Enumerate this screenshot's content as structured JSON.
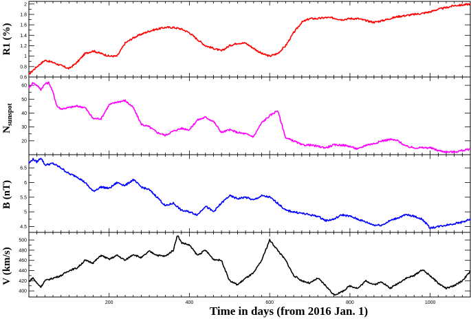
{
  "xlabel": "Time in days (from 2016 Jan. 1)",
  "x_tick_labels": [
    "200",
    "400",
    "600",
    "800",
    "1000"
  ],
  "chart_data": [
    {
      "type": "line",
      "ylabel": "R1 (%)",
      "color": "#ff0000",
      "xlim": [
        0,
        1100
      ],
      "ylim": [
        0.6,
        2.05
      ],
      "y_ticks": [
        0.6,
        0.8,
        1,
        1.2,
        1.4,
        1.6,
        1.8,
        2
      ],
      "y_tick_labels": [
        "0.6",
        "0.8",
        "1",
        "1.2",
        "1.4",
        "1.6",
        "1.8",
        "2"
      ],
      "x": [
        0,
        20,
        40,
        60,
        80,
        100,
        120,
        140,
        160,
        180,
        200,
        220,
        240,
        260,
        280,
        300,
        320,
        340,
        360,
        380,
        400,
        420,
        440,
        460,
        480,
        500,
        520,
        540,
        560,
        580,
        600,
        620,
        640,
        660,
        680,
        700,
        720,
        740,
        760,
        780,
        800,
        820,
        840,
        860,
        880,
        900,
        920,
        940,
        960,
        980,
        1000,
        1020,
        1040,
        1060,
        1080,
        1100
      ],
      "y": [
        0.65,
        0.8,
        0.92,
        0.88,
        0.82,
        0.76,
        0.88,
        1.05,
        1.1,
        1.05,
        1.0,
        1.0,
        1.25,
        1.35,
        1.42,
        1.48,
        1.52,
        1.55,
        1.55,
        1.52,
        1.45,
        1.32,
        1.2,
        1.15,
        1.1,
        1.2,
        1.25,
        1.25,
        1.15,
        1.05,
        1.0,
        1.05,
        1.2,
        1.45,
        1.65,
        1.72,
        1.72,
        1.74,
        1.73,
        1.7,
        1.72,
        1.72,
        1.68,
        1.65,
        1.68,
        1.72,
        1.76,
        1.78,
        1.8,
        1.82,
        1.85,
        1.9,
        1.93,
        1.97,
        1.98,
        2.0
      ]
    },
    {
      "type": "line",
      "ylabel": "N",
      "ylabel_subscript": "sunspot",
      "color": "#ff00ff",
      "xlim": [
        0,
        1100
      ],
      "ylim": [
        10,
        66
      ],
      "y_ticks": [
        20,
        30,
        40,
        50,
        60
      ],
      "y_tick_labels": [
        "20",
        "30",
        "40",
        "50",
        "60"
      ],
      "x": [
        0,
        10,
        20,
        30,
        40,
        50,
        60,
        70,
        80,
        100,
        120,
        140,
        160,
        180,
        200,
        220,
        240,
        260,
        280,
        300,
        320,
        340,
        360,
        380,
        400,
        420,
        440,
        460,
        480,
        500,
        520,
        540,
        560,
        580,
        600,
        620,
        640,
        660,
        680,
        700,
        720,
        740,
        760,
        780,
        800,
        820,
        840,
        860,
        880,
        900,
        920,
        940,
        960,
        980,
        1000,
        1020,
        1040,
        1060,
        1080,
        1100
      ],
      "y": [
        58,
        62,
        60,
        57,
        61,
        62,
        55,
        45,
        43,
        44,
        45,
        44,
        36,
        36,
        46,
        48,
        49,
        44,
        32,
        30,
        26,
        24,
        27,
        29,
        28,
        35,
        37,
        34,
        26,
        28,
        26,
        25,
        23,
        33,
        38,
        42,
        22,
        20,
        17,
        17,
        16,
        15,
        17,
        17,
        16,
        14,
        17,
        18,
        20,
        21,
        20,
        16,
        15,
        15,
        15,
        13,
        12,
        12,
        13,
        14
      ]
    },
    {
      "type": "line",
      "ylabel": "B (nT)",
      "color": "#0000ff",
      "xlim": [
        0,
        1100
      ],
      "ylim": [
        4.3,
        6.95
      ],
      "y_ticks": [
        4.5,
        5,
        5.5,
        6,
        6.5
      ],
      "y_tick_labels": [
        "4.5",
        "5",
        "5.5",
        "6",
        "6.5"
      ],
      "x": [
        0,
        10,
        20,
        30,
        40,
        60,
        80,
        100,
        120,
        140,
        160,
        180,
        200,
        220,
        240,
        260,
        280,
        300,
        320,
        340,
        360,
        380,
        400,
        420,
        440,
        460,
        480,
        500,
        520,
        540,
        560,
        580,
        600,
        620,
        640,
        660,
        680,
        700,
        720,
        740,
        760,
        780,
        800,
        820,
        840,
        860,
        880,
        900,
        920,
        940,
        960,
        980,
        1000,
        1020,
        1040,
        1060,
        1080,
        1100
      ],
      "y": [
        6.65,
        6.8,
        6.7,
        6.85,
        6.6,
        6.65,
        6.5,
        6.3,
        6.2,
        6.0,
        5.7,
        5.85,
        5.8,
        6.0,
        5.9,
        6.1,
        5.85,
        5.75,
        5.5,
        5.2,
        5.3,
        5.05,
        5.0,
        4.9,
        5.2,
        5.0,
        5.3,
        5.55,
        5.45,
        5.5,
        5.4,
        5.55,
        5.5,
        5.3,
        5.05,
        5.0,
        4.95,
        4.9,
        4.85,
        4.7,
        4.75,
        4.9,
        4.85,
        4.75,
        4.65,
        4.55,
        4.55,
        4.7,
        4.8,
        4.9,
        4.85,
        4.75,
        4.45,
        4.5,
        4.55,
        4.6,
        4.65,
        4.75
      ]
    },
    {
      "type": "line",
      "ylabel": "V (km/s)",
      "color": "#000000",
      "xlim": [
        0,
        1100
      ],
      "ylim": [
        388,
        515
      ],
      "y_ticks": [
        400,
        420,
        440,
        460,
        480,
        500
      ],
      "y_tick_labels": [
        "400",
        "420",
        "440",
        "460",
        "480",
        "500"
      ],
      "x": [
        0,
        10,
        20,
        30,
        40,
        60,
        80,
        100,
        120,
        140,
        160,
        180,
        200,
        220,
        240,
        260,
        280,
        300,
        320,
        340,
        360,
        370,
        380,
        400,
        420,
        440,
        460,
        480,
        500,
        520,
        540,
        560,
        580,
        600,
        620,
        640,
        660,
        680,
        700,
        720,
        740,
        760,
        780,
        800,
        820,
        840,
        860,
        880,
        900,
        920,
        940,
        960,
        980,
        1000,
        1020,
        1040,
        1060,
        1080,
        1100
      ],
      "y": [
        418,
        426,
        415,
        408,
        420,
        425,
        430,
        440,
        445,
        460,
        455,
        470,
        462,
        470,
        460,
        472,
        465,
        478,
        470,
        468,
        480,
        510,
        495,
        490,
        470,
        480,
        462,
        460,
        420,
        412,
        425,
        435,
        460,
        500,
        480,
        460,
        430,
        420,
        415,
        425,
        410,
        392,
        398,
        410,
        405,
        420,
        412,
        418,
        405,
        415,
        425,
        430,
        442,
        430,
        415,
        405,
        410,
        420,
        438
      ]
    }
  ]
}
